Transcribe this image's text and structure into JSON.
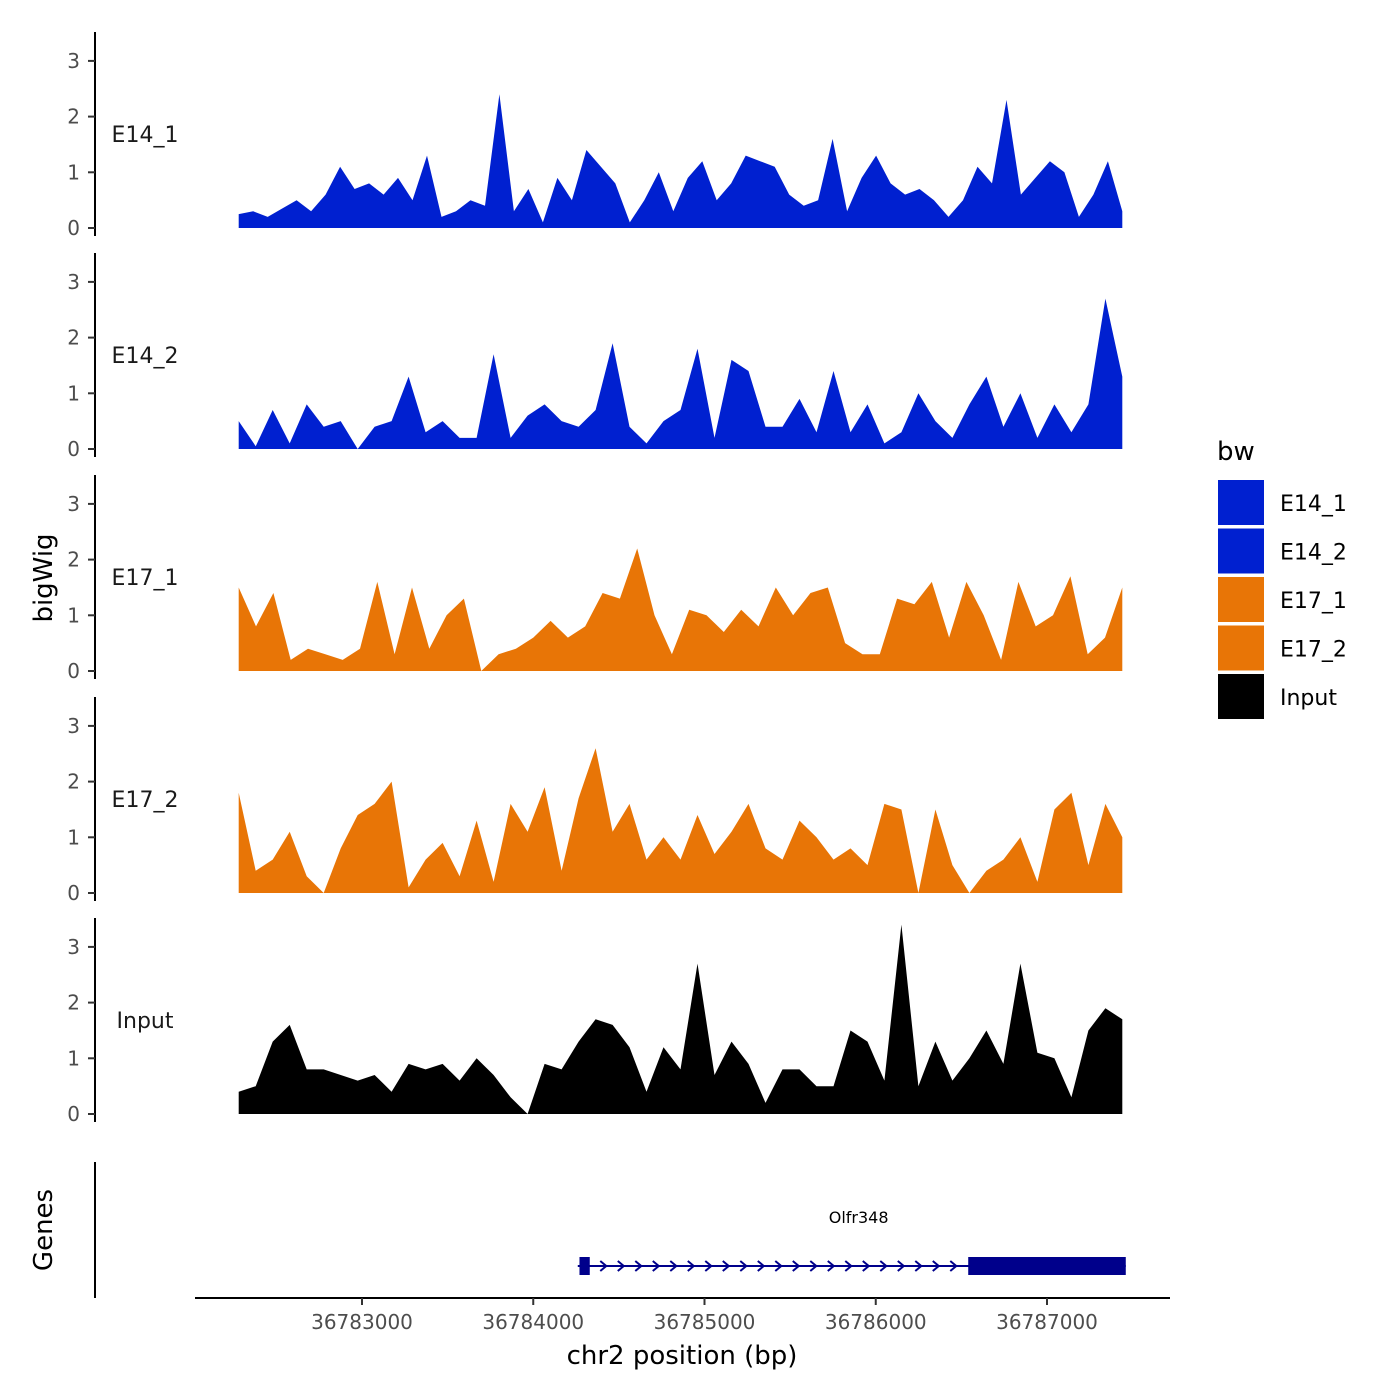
{
  "chart_data": {
    "type": "area",
    "x_axis": {
      "label": "chr2 position (bp)",
      "range": [
        36782000,
        36787600
      ],
      "ticks": [
        36783000,
        36784000,
        36785000,
        36786000,
        36787000
      ],
      "tick_labels": [
        "36783000",
        "36784000",
        "36785000",
        "36786000",
        "36787000"
      ]
    },
    "y_axis": {
      "label": "bigWig",
      "range": [
        0,
        3.5
      ],
      "ticks": [
        0,
        1,
        2,
        3
      ],
      "tick_labels": [
        "0",
        "1",
        "2",
        "3"
      ]
    },
    "legend": {
      "title": "bw",
      "position": "right",
      "entries": [
        {
          "label": "E14_1",
          "color": "#0020D0"
        },
        {
          "label": "E14_2",
          "color": "#0020D0"
        },
        {
          "label": "E17_1",
          "color": "#E87506"
        },
        {
          "label": "E17_2",
          "color": "#E87506"
        },
        {
          "label": "Input",
          "color": "#000000"
        }
      ]
    },
    "series": [
      {
        "name": "E14_1",
        "color": "#0020D0",
        "x_start": 36782280,
        "x_end": 36787440,
        "values": [
          0.25,
          0.3,
          0.2,
          0.35,
          0.5,
          0.3,
          0.6,
          1.1,
          0.7,
          0.8,
          0.6,
          0.9,
          0.5,
          1.3,
          0.2,
          0.3,
          0.5,
          0.4,
          2.4,
          0.3,
          0.7,
          0.1,
          0.9,
          0.5,
          1.4,
          1.1,
          0.8,
          0.1,
          0.5,
          1.0,
          0.3,
          0.9,
          1.2,
          0.5,
          0.8,
          1.3,
          1.2,
          1.1,
          0.6,
          0.4,
          0.5,
          1.6,
          0.3,
          0.9,
          1.3,
          0.8,
          0.6,
          0.7,
          0.5,
          0.2,
          0.5,
          1.1,
          0.8,
          2.3,
          0.6,
          0.9,
          1.2,
          1.0,
          0.2,
          0.6,
          1.2,
          0.3
        ]
      },
      {
        "name": "E14_2",
        "color": "#0020D0",
        "x_start": 36782280,
        "x_end": 36787440,
        "values": [
          0.5,
          0.05,
          0.7,
          0.1,
          0.8,
          0.4,
          0.5,
          0.0,
          0.4,
          0.5,
          1.3,
          0.3,
          0.5,
          0.2,
          0.2,
          1.7,
          0.2,
          0.6,
          0.8,
          0.5,
          0.4,
          0.7,
          1.9,
          0.4,
          0.1,
          0.5,
          0.7,
          1.8,
          0.2,
          1.6,
          1.4,
          0.4,
          0.4,
          0.9,
          0.3,
          1.4,
          0.3,
          0.8,
          0.1,
          0.3,
          1.0,
          0.5,
          0.2,
          0.8,
          1.3,
          0.4,
          1.0,
          0.2,
          0.8,
          0.3,
          0.8,
          2.7,
          1.3
        ]
      },
      {
        "name": "E17_1",
        "color": "#E87506",
        "x_start": 36782280,
        "x_end": 36787440,
        "values": [
          1.5,
          0.8,
          1.4,
          0.2,
          0.4,
          0.3,
          0.2,
          0.4,
          1.6,
          0.3,
          1.5,
          0.4,
          1.0,
          1.3,
          0.0,
          0.3,
          0.4,
          0.6,
          0.9,
          0.6,
          0.8,
          1.4,
          1.3,
          2.2,
          1.0,
          0.3,
          1.1,
          1.0,
          0.7,
          1.1,
          0.8,
          1.5,
          1.0,
          1.4,
          1.5,
          0.5,
          0.3,
          0.3,
          1.3,
          1.2,
          1.6,
          0.6,
          1.6,
          1.0,
          0.2,
          1.6,
          0.8,
          1.0,
          1.7,
          0.3,
          0.6,
          1.5
        ]
      },
      {
        "name": "E17_2",
        "color": "#E87506",
        "x_start": 36782280,
        "x_end": 36787440,
        "values": [
          1.8,
          0.4,
          0.6,
          1.1,
          0.3,
          0.0,
          0.8,
          1.4,
          1.6,
          2.0,
          0.1,
          0.6,
          0.9,
          0.3,
          1.3,
          0.2,
          1.6,
          1.1,
          1.9,
          0.4,
          1.7,
          2.6,
          1.1,
          1.6,
          0.6,
          1.0,
          0.6,
          1.4,
          0.7,
          1.1,
          1.6,
          0.8,
          0.6,
          1.3,
          1.0,
          0.6,
          0.8,
          0.5,
          1.6,
          1.5,
          0.0,
          1.5,
          0.5,
          0.0,
          0.4,
          0.6,
          1.0,
          0.2,
          1.5,
          1.8,
          0.5,
          1.6,
          1.0
        ]
      },
      {
        "name": "Input",
        "color": "#000000",
        "x_start": 36782280,
        "x_end": 36787440,
        "values": [
          0.4,
          0.5,
          1.3,
          1.6,
          0.8,
          0.8,
          0.7,
          0.6,
          0.7,
          0.4,
          0.9,
          0.8,
          0.9,
          0.6,
          1.0,
          0.7,
          0.3,
          0.0,
          0.9,
          0.8,
          1.3,
          1.7,
          1.6,
          1.2,
          0.4,
          1.2,
          0.8,
          2.7,
          0.7,
          1.3,
          0.9,
          0.2,
          0.8,
          0.8,
          0.5,
          0.5,
          1.5,
          1.3,
          0.6,
          3.4,
          0.5,
          1.3,
          0.6,
          1.0,
          1.5,
          0.9,
          2.7,
          1.1,
          1.0,
          0.3,
          1.5,
          1.9,
          1.7
        ]
      }
    ],
    "gene_track": {
      "label": "Genes",
      "genes": [
        {
          "name": "Olfr348",
          "start": 36784260,
          "end": 36787460,
          "strand": "+",
          "exons": [
            [
              36784270,
              36784330
            ],
            [
              36786540,
              36787460
            ]
          ],
          "color": "#00008B"
        }
      ]
    }
  }
}
